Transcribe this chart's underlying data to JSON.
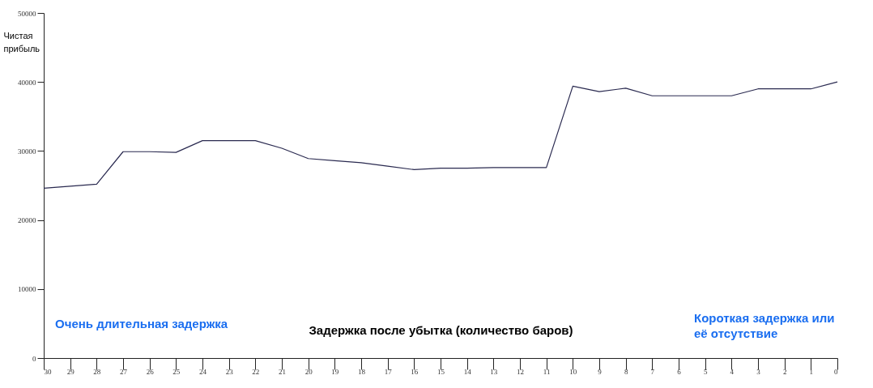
{
  "chart_data": {
    "type": "line",
    "x": [
      30,
      29,
      28,
      27,
      26,
      25,
      24,
      23,
      22,
      21,
      20,
      19,
      18,
      17,
      16,
      15,
      14,
      13,
      12,
      11,
      10,
      9,
      8,
      7,
      6,
      5,
      4,
      3,
      2,
      1,
      0
    ],
    "series": [
      {
        "color": "#2a2a50",
        "values": [
          24600,
          24900,
          25200,
          29900,
          29900,
          29800,
          31500,
          31500,
          31500,
          30400,
          28900,
          28600,
          28300,
          27800,
          27300,
          27500,
          27500,
          27600,
          27600,
          27600,
          39400,
          38600,
          39100,
          38000,
          38000,
          38000,
          38000,
          39000,
          39000,
          39000,
          40000
        ]
      }
    ],
    "xlim": [
      30,
      0
    ],
    "xticks": [
      30,
      29,
      28,
      27,
      26,
      25,
      24,
      23,
      22,
      21,
      20,
      19,
      18,
      17,
      16,
      15,
      14,
      13,
      12,
      11,
      10,
      9,
      8,
      7,
      6,
      5,
      4,
      3,
      2,
      1,
      0
    ],
    "ylim": [
      0,
      50000
    ],
    "yticks": [
      0,
      10000,
      20000,
      30000,
      40000,
      50000
    ],
    "xlabel": "Задержка после убытка (количество баров)",
    "ylabel": "Чистая прибыль",
    "annotations": [
      "Очень длительная задержка",
      "Короткая задержка или её отсутствие"
    ],
    "grid": false
  }
}
